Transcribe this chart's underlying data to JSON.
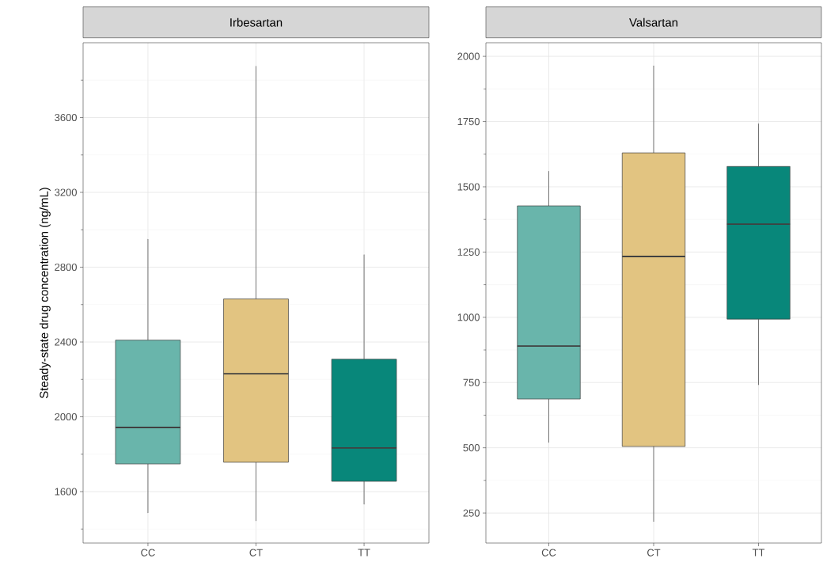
{
  "chart_data": [
    {
      "type": "box",
      "title": "Irbesartan",
      "ylabel": "Steady-state drug concentration (ng/mL)",
      "categories": [
        "CC",
        "CT",
        "TT"
      ],
      "boxes": [
        {
          "low": 1486,
          "q1": 1748,
          "median": 1943,
          "q3": 2410,
          "high": 2950
        },
        {
          "low": 1443,
          "q1": 1757,
          "median": 2230,
          "q3": 2630,
          "high": 3875
        },
        {
          "low": 1532,
          "q1": 1655,
          "median": 1833,
          "q3": 2308,
          "high": 2867
        }
      ],
      "colors": [
        "#69b5ab",
        "#e2c481",
        "#08877a"
      ],
      "ylim": [
        1325,
        4000
      ],
      "yticks": [
        1600,
        2000,
        2400,
        2800,
        3200,
        3600
      ],
      "grid": true
    },
    {
      "type": "box",
      "title": "Valsartan",
      "categories": [
        "CC",
        "CT",
        "TT"
      ],
      "boxes": [
        {
          "low": 520,
          "q1": 687,
          "median": 890,
          "q3": 1427,
          "high": 1560
        },
        {
          "low": 217,
          "q1": 505,
          "median": 1233,
          "q3": 1630,
          "high": 1964
        },
        {
          "low": 741,
          "q1": 993,
          "median": 1357,
          "q3": 1578,
          "high": 1742
        }
      ],
      "colors": [
        "#69b5ab",
        "#e2c481",
        "#08877a"
      ],
      "ylim": [
        135,
        2052
      ],
      "yticks": [
        250,
        500,
        750,
        1000,
        1250,
        1500,
        1750,
        2000
      ],
      "grid": true
    }
  ]
}
